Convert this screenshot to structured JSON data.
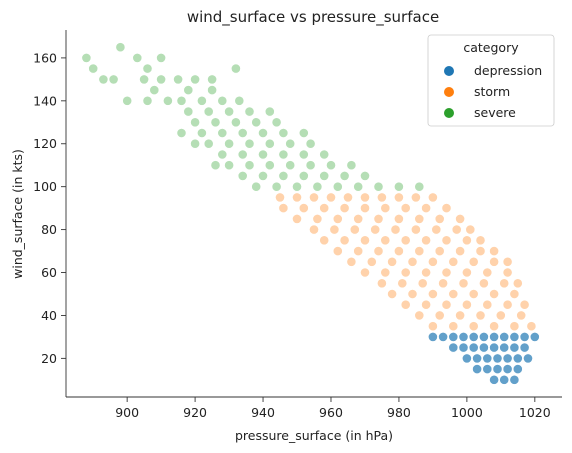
{
  "chart_data": {
    "type": "scatter",
    "title": "wind_surface vs pressure_surface",
    "xlabel": "pressure_surface (in hPa)",
    "ylabel": "wind_surface (in kts)",
    "xlim": [
      882,
      1028
    ],
    "ylim": [
      2,
      173
    ],
    "x_ticks": [
      900,
      920,
      940,
      960,
      980,
      1000,
      1020
    ],
    "y_ticks": [
      20,
      40,
      60,
      80,
      100,
      120,
      140,
      160
    ],
    "grid": false,
    "legend": {
      "title": "category",
      "placement": "top-right"
    },
    "series": [
      {
        "name": "depression",
        "color": "#1f77b4",
        "points": [
          [
            990,
            30
          ],
          [
            993,
            30
          ],
          [
            996,
            30
          ],
          [
            999,
            30
          ],
          [
            1002,
            30
          ],
          [
            1005,
            30
          ],
          [
            1008,
            30
          ],
          [
            1011,
            30
          ],
          [
            1014,
            30
          ],
          [
            1017,
            30
          ],
          [
            1020,
            30
          ],
          [
            996,
            25
          ],
          [
            999,
            25
          ],
          [
            1002,
            25
          ],
          [
            1005,
            25
          ],
          [
            1008,
            25
          ],
          [
            1011,
            25
          ],
          [
            1014,
            25
          ],
          [
            1017,
            25
          ],
          [
            1000,
            20
          ],
          [
            1003,
            20
          ],
          [
            1006,
            20
          ],
          [
            1009,
            20
          ],
          [
            1012,
            20
          ],
          [
            1015,
            20
          ],
          [
            1018,
            20
          ],
          [
            1003,
            15
          ],
          [
            1006,
            15
          ],
          [
            1009,
            15
          ],
          [
            1012,
            15
          ],
          [
            1015,
            15
          ],
          [
            1008,
            10
          ],
          [
            1011,
            10
          ],
          [
            1014,
            10
          ]
        ]
      },
      {
        "name": "storm",
        "color": "#ff7f0e",
        "points": [
          [
            945,
            95
          ],
          [
            950,
            95
          ],
          [
            955,
            95
          ],
          [
            960,
            95
          ],
          [
            965,
            95
          ],
          [
            970,
            95
          ],
          [
            975,
            95
          ],
          [
            980,
            95
          ],
          [
            985,
            95
          ],
          [
            990,
            95
          ],
          [
            946,
            90
          ],
          [
            952,
            90
          ],
          [
            958,
            90
          ],
          [
            964,
            90
          ],
          [
            970,
            90
          ],
          [
            976,
            90
          ],
          [
            982,
            90
          ],
          [
            988,
            90
          ],
          [
            994,
            90
          ],
          [
            950,
            85
          ],
          [
            956,
            85
          ],
          [
            962,
            85
          ],
          [
            968,
            85
          ],
          [
            974,
            85
          ],
          [
            980,
            85
          ],
          [
            986,
            85
          ],
          [
            992,
            85
          ],
          [
            998,
            85
          ],
          [
            955,
            80
          ],
          [
            961,
            80
          ],
          [
            967,
            80
          ],
          [
            973,
            80
          ],
          [
            979,
            80
          ],
          [
            985,
            80
          ],
          [
            991,
            80
          ],
          [
            997,
            80
          ],
          [
            1001,
            80
          ],
          [
            958,
            75
          ],
          [
            964,
            75
          ],
          [
            970,
            75
          ],
          [
            976,
            75
          ],
          [
            982,
            75
          ],
          [
            988,
            75
          ],
          [
            994,
            75
          ],
          [
            1000,
            75
          ],
          [
            1004,
            75
          ],
          [
            962,
            70
          ],
          [
            968,
            70
          ],
          [
            974,
            70
          ],
          [
            980,
            70
          ],
          [
            986,
            70
          ],
          [
            992,
            70
          ],
          [
            998,
            70
          ],
          [
            1004,
            70
          ],
          [
            1008,
            70
          ],
          [
            966,
            65
          ],
          [
            972,
            65
          ],
          [
            978,
            65
          ],
          [
            984,
            65
          ],
          [
            990,
            65
          ],
          [
            996,
            65
          ],
          [
            1002,
            65
          ],
          [
            1008,
            65
          ],
          [
            1012,
            65
          ],
          [
            970,
            60
          ],
          [
            976,
            60
          ],
          [
            982,
            60
          ],
          [
            988,
            60
          ],
          [
            994,
            60
          ],
          [
            1000,
            60
          ],
          [
            1006,
            60
          ],
          [
            1012,
            60
          ],
          [
            975,
            55
          ],
          [
            981,
            55
          ],
          [
            987,
            55
          ],
          [
            993,
            55
          ],
          [
            999,
            55
          ],
          [
            1005,
            55
          ],
          [
            1011,
            55
          ],
          [
            1015,
            55
          ],
          [
            978,
            50
          ],
          [
            984,
            50
          ],
          [
            990,
            50
          ],
          [
            996,
            50
          ],
          [
            1002,
            50
          ],
          [
            1008,
            50
          ],
          [
            1014,
            50
          ],
          [
            982,
            45
          ],
          [
            988,
            45
          ],
          [
            994,
            45
          ],
          [
            1000,
            45
          ],
          [
            1006,
            45
          ],
          [
            1012,
            45
          ],
          [
            1017,
            45
          ],
          [
            986,
            40
          ],
          [
            992,
            40
          ],
          [
            998,
            40
          ],
          [
            1004,
            40
          ],
          [
            1010,
            40
          ],
          [
            1016,
            40
          ],
          [
            990,
            35
          ],
          [
            996,
            35
          ],
          [
            1002,
            35
          ],
          [
            1008,
            35
          ],
          [
            1014,
            35
          ],
          [
            1019,
            35
          ]
        ]
      },
      {
        "name": "severe",
        "color": "#2ca02c",
        "points": [
          [
            888,
            160
          ],
          [
            890,
            155
          ],
          [
            893,
            150
          ],
          [
            898,
            165
          ],
          [
            903,
            160
          ],
          [
            906,
            155
          ],
          [
            910,
            160
          ],
          [
            896,
            150
          ],
          [
            905,
            150
          ],
          [
            910,
            150
          ],
          [
            915,
            150
          ],
          [
            920,
            150
          ],
          [
            925,
            145
          ],
          [
            908,
            145
          ],
          [
            912,
            140
          ],
          [
            918,
            145
          ],
          [
            900,
            140
          ],
          [
            906,
            140
          ],
          [
            916,
            140
          ],
          [
            922,
            140
          ],
          [
            928,
            140
          ],
          [
            933,
            140
          ],
          [
            918,
            135
          ],
          [
            924,
            135
          ],
          [
            930,
            135
          ],
          [
            936,
            135
          ],
          [
            942,
            135
          ],
          [
            920,
            130
          ],
          [
            926,
            130
          ],
          [
            932,
            130
          ],
          [
            938,
            130
          ],
          [
            944,
            130
          ],
          [
            922,
            125
          ],
          [
            928,
            125
          ],
          [
            934,
            125
          ],
          [
            940,
            125
          ],
          [
            946,
            125
          ],
          [
            952,
            125
          ],
          [
            924,
            120
          ],
          [
            930,
            120
          ],
          [
            936,
            120
          ],
          [
            942,
            120
          ],
          [
            948,
            120
          ],
          [
            954,
            120
          ],
          [
            928,
            115
          ],
          [
            934,
            115
          ],
          [
            940,
            115
          ],
          [
            946,
            115
          ],
          [
            952,
            115
          ],
          [
            958,
            115
          ],
          [
            930,
            110
          ],
          [
            936,
            110
          ],
          [
            942,
            110
          ],
          [
            948,
            110
          ],
          [
            954,
            110
          ],
          [
            960,
            110
          ],
          [
            966,
            110
          ],
          [
            934,
            105
          ],
          [
            940,
            105
          ],
          [
            946,
            105
          ],
          [
            952,
            105
          ],
          [
            958,
            105
          ],
          [
            964,
            105
          ],
          [
            970,
            105
          ],
          [
            938,
            100
          ],
          [
            944,
            100
          ],
          [
            950,
            100
          ],
          [
            956,
            100
          ],
          [
            962,
            100
          ],
          [
            968,
            100
          ],
          [
            974,
            100
          ],
          [
            980,
            100
          ],
          [
            986,
            100
          ],
          [
            926,
            110
          ],
          [
            920,
            120
          ],
          [
            916,
            125
          ],
          [
            932,
            155
          ],
          [
            925,
            150
          ]
        ]
      }
    ]
  }
}
